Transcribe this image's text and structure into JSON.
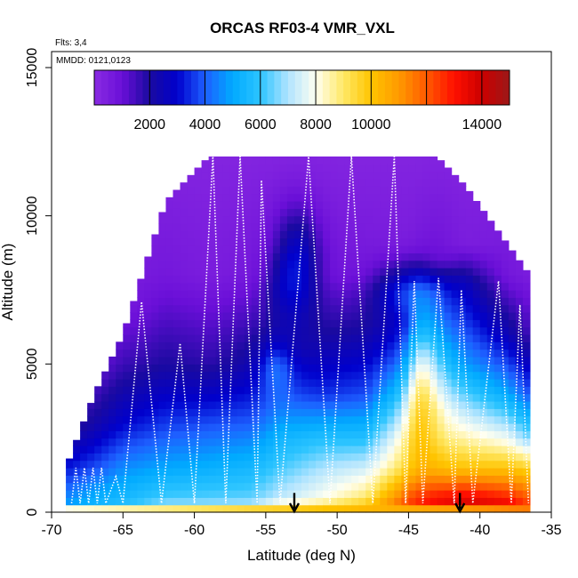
{
  "chart_data": {
    "type": "heatmap",
    "title": "ORCAS RF03-4 VMR_VXL",
    "flights_note": "Flts: 3,4",
    "date_note": "MMDD: 0121,0123",
    "xlabel": "Latitude (deg N)",
    "ylabel": "Altitude (m)",
    "xlim": [
      -70,
      -35
    ],
    "ylim": [
      0,
      15000
    ],
    "x_ticks": [
      -70,
      -65,
      -60,
      -55,
      -50,
      -45,
      -40,
      -35
    ],
    "y_ticks": [
      0,
      5000,
      10000,
      15000
    ],
    "colorbar": {
      "range": [
        0,
        15000
      ],
      "tick_labels": [
        2000,
        4000,
        6000,
        8000,
        10000,
        14000
      ],
      "stops": [
        {
          "v": 0,
          "c": "#8a2be2"
        },
        {
          "v": 1000,
          "c": "#6a0fd8"
        },
        {
          "v": 2000,
          "c": "#1a0aa0"
        },
        {
          "v": 3000,
          "c": "#0000cd"
        },
        {
          "v": 4000,
          "c": "#1e5fff"
        },
        {
          "v": 5000,
          "c": "#00aaff"
        },
        {
          "v": 6000,
          "c": "#2cc4ff"
        },
        {
          "v": 7000,
          "c": "#b0e4ff"
        },
        {
          "v": 8000,
          "c": "#fffff0"
        },
        {
          "v": 9000,
          "c": "#ffe866"
        },
        {
          "v": 10000,
          "c": "#ffc400"
        },
        {
          "v": 11000,
          "c": "#ff9a00"
        },
        {
          "v": 12000,
          "c": "#ff5a00"
        },
        {
          "v": 13000,
          "c": "#ff1000"
        },
        {
          "v": 14000,
          "c": "#cc0000"
        },
        {
          "v": 15000,
          "c": "#9c1818"
        }
      ]
    },
    "field": {
      "surface_value": 11500,
      "profiles": [
        {
          "lat": -69,
          "top": 1500,
          "pts": [
            [
              0,
              5200
            ],
            [
              500,
              4500
            ],
            [
              1500,
              3200
            ],
            [
              3000,
              1500
            ],
            [
              6000,
              400
            ],
            [
              12000,
              250
            ]
          ]
        },
        {
          "lat": -67,
          "top": 4000,
          "pts": [
            [
              0,
              5600
            ],
            [
              500,
              5200
            ],
            [
              1500,
              3800
            ],
            [
              3000,
              2200
            ],
            [
              5000,
              900
            ],
            [
              7000,
              400
            ],
            [
              12000,
              250
            ]
          ]
        },
        {
          "lat": -65,
          "top": 6000,
          "pts": [
            [
              0,
              6200
            ],
            [
              500,
              5500
            ],
            [
              1500,
              4600
            ],
            [
              3000,
              3000
            ],
            [
              5000,
              1600
            ],
            [
              7000,
              600
            ],
            [
              12000,
              250
            ]
          ]
        },
        {
          "lat": -62,
          "top": 10500,
          "pts": [
            [
              0,
              7500
            ],
            [
              500,
              6200
            ],
            [
              1500,
              5000
            ],
            [
              3000,
              3600
            ],
            [
              5000,
              2000
            ],
            [
              8000,
              700
            ],
            [
              12000,
              250
            ]
          ]
        },
        {
          "lat": -59,
          "top": 12000,
          "pts": [
            [
              0,
              7500
            ],
            [
              500,
              6300
            ],
            [
              1500,
              5200
            ],
            [
              3000,
              3800
            ],
            [
              5000,
              1800
            ],
            [
              8000,
              500
            ],
            [
              12000,
              250
            ]
          ]
        },
        {
          "lat": -56,
          "top": 12000,
          "pts": [
            [
              0,
              7800
            ],
            [
              500,
              6400
            ],
            [
              1500,
              5500
            ],
            [
              3000,
              4000
            ],
            [
              5000,
              2300
            ],
            [
              8000,
              700
            ],
            [
              12000,
              250
            ]
          ]
        },
        {
          "lat": -54,
          "top": 12000,
          "pts": [
            [
              0,
              9500
            ],
            [
              500,
              7200
            ],
            [
              1500,
              6200
            ],
            [
              2500,
              5400
            ],
            [
              4000,
              3800
            ],
            [
              5500,
              2000
            ],
            [
              7500,
              1800
            ],
            [
              9000,
              700
            ],
            [
              12000,
              250
            ]
          ]
        },
        {
          "lat": -51,
          "top": 12000,
          "pts": [
            [
              0,
              10000
            ],
            [
              500,
              8000
            ],
            [
              1500,
              7000
            ],
            [
              2500,
              5800
            ],
            [
              4000,
              3500
            ],
            [
              6000,
              2000
            ],
            [
              8000,
              800
            ],
            [
              12000,
              250
            ]
          ]
        },
        {
          "lat": -48,
          "top": 12000,
          "pts": [
            [
              0,
              10800
            ],
            [
              500,
              9000
            ],
            [
              1500,
              7400
            ],
            [
              2500,
              5800
            ],
            [
              4000,
              3800
            ],
            [
              6000,
              2200
            ],
            [
              8000,
              700
            ],
            [
              12000,
              250
            ]
          ]
        },
        {
          "lat": -45,
          "top": 12000,
          "pts": [
            [
              0,
              12500
            ],
            [
              500,
              12000
            ],
            [
              1500,
              9500
            ],
            [
              2500,
              8500
            ],
            [
              3500,
              7000
            ],
            [
              5000,
              4500
            ],
            [
              6500,
              2500
            ],
            [
              8000,
              1200
            ],
            [
              9000,
              500
            ],
            [
              12000,
              250
            ]
          ]
        },
        {
          "lat": -43,
          "top": 12000,
          "pts": [
            [
              0,
              13500
            ],
            [
              500,
              13000
            ],
            [
              1500,
              10200
            ],
            [
              2500,
              9000
            ],
            [
              3500,
              8200
            ],
            [
              5000,
              6200
            ],
            [
              6500,
              4200
            ],
            [
              7500,
              2800
            ],
            [
              8500,
              900
            ],
            [
              12000,
              250
            ]
          ]
        },
        {
          "lat": -41,
          "top": 11000,
          "pts": [
            [
              0,
              14000
            ],
            [
              500,
              13500
            ],
            [
              1500,
              10000
            ],
            [
              2500,
              8500
            ],
            [
              3500,
              7000
            ],
            [
              5000,
              4800
            ],
            [
              6500,
              3500
            ],
            [
              7800,
              2500
            ],
            [
              9000,
              500
            ],
            [
              12000,
              250
            ]
          ]
        },
        {
          "lat": -38,
          "top": 9000,
          "pts": [
            [
              0,
              14200
            ],
            [
              500,
              12800
            ],
            [
              1500,
              10000
            ],
            [
              2500,
              7800
            ],
            [
              4000,
              5000
            ],
            [
              6000,
              2500
            ],
            [
              8000,
              700
            ],
            [
              12000,
              250
            ]
          ]
        },
        {
          "lat": -36.5,
          "top": 8000,
          "pts": [
            [
              0,
              12500
            ],
            [
              500,
              12000
            ],
            [
              1500,
              9600
            ],
            [
              2500,
              6500
            ],
            [
              4000,
              3800
            ],
            [
              6000,
              1500
            ],
            [
              8000,
              500
            ],
            [
              12000,
              250
            ]
          ]
        }
      ],
      "anomalies": [
        {
          "lat": -52.8,
          "alt": 8500,
          "dlat": 1.6,
          "dalt": 1800,
          "dv": 2200
        },
        {
          "lat": -54.3,
          "alt": 5000,
          "dlat": 1.2,
          "dalt": 900,
          "dv": 1400
        },
        {
          "lat": -45.2,
          "alt": 7500,
          "dlat": 2.4,
          "dalt": 900,
          "dv": 1800
        },
        {
          "lat": -44.2,
          "alt": 4500,
          "dlat": 1.0,
          "dalt": 2500,
          "dv": 2500
        }
      ]
    },
    "flight_track_profiles": [
      {
        "lat_start": -68.6,
        "lat_top": -68.3,
        "lat_end": -68.0,
        "top": 1500
      },
      {
        "lat_start": -68.0,
        "lat_top": -67.7,
        "lat_end": -67.4,
        "top": 1500
      },
      {
        "lat_start": -67.4,
        "lat_top": -67.1,
        "lat_end": -66.8,
        "top": 1500
      },
      {
        "lat_start": -66.8,
        "lat_top": -66.5,
        "lat_end": -66.2,
        "top": 1500
      },
      {
        "lat_start": -66.2,
        "lat_top": -65.5,
        "lat_end": -65.0,
        "top": 1200
      },
      {
        "lat_start": -65.0,
        "lat_top": -63.7,
        "lat_end": -62.3,
        "top": 7100
      },
      {
        "lat_start": -62.3,
        "lat_top": -61.0,
        "lat_end": -60.0,
        "top": 5700
      },
      {
        "lat_start": -60.0,
        "lat_top": -58.7,
        "lat_end": -57.8,
        "top": 12000
      },
      {
        "lat_start": -57.8,
        "lat_top": -56.8,
        "lat_end": -55.6,
        "top": 12000
      },
      {
        "lat_start": -55.6,
        "lat_top": -55.3,
        "lat_end": -54.0,
        "top": 11200
      },
      {
        "lat_start": -54.0,
        "lat_top": -52.0,
        "lat_end": -50.5,
        "top": 12000
      },
      {
        "lat_start": -50.5,
        "lat_top": -49.0,
        "lat_end": -47.5,
        "top": 12000
      },
      {
        "lat_start": -47.5,
        "lat_top": -46.0,
        "lat_end": -45.2,
        "top": 12000
      },
      {
        "lat_start": -45.2,
        "lat_top": -44.6,
        "lat_end": -44.0,
        "top": 7800
      },
      {
        "lat_start": -44.0,
        "lat_top": -42.9,
        "lat_end": -41.8,
        "top": 7900
      },
      {
        "lat_start": -41.8,
        "lat_top": -41.3,
        "lat_end": -40.5,
        "top": 7500
      },
      {
        "lat_start": -40.5,
        "lat_top": -38.7,
        "lat_end": -37.8,
        "top": 7800
      },
      {
        "lat_start": -37.8,
        "lat_top": -37.2,
        "lat_end": -36.6,
        "top": 7000
      }
    ],
    "arrow_markers_lat": [
      -53.0,
      -41.4
    ],
    "arrow_marker_color": "#000000",
    "track_color": "#ffffff"
  }
}
